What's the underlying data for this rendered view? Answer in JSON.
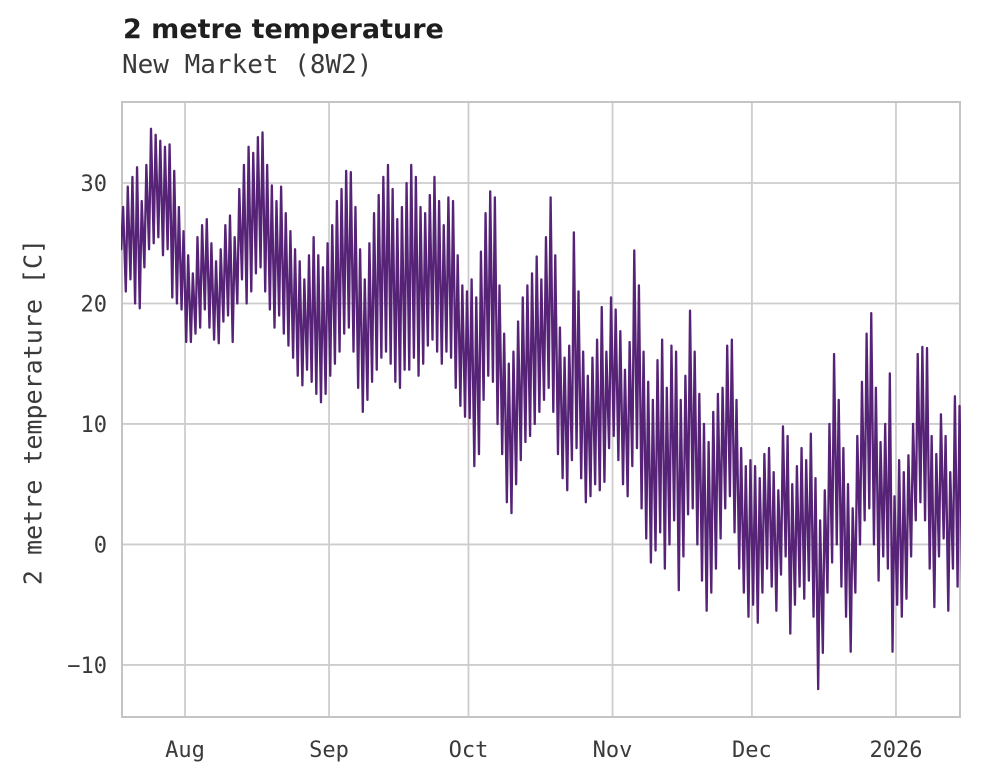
{
  "chart_data": {
    "type": "line",
    "title": "2 metre temperature",
    "subtitle": "New Market (8W2)",
    "ylabel": "2 metre temperature [C]",
    "series_name": "2 metre temperature",
    "line_color": "#562377",
    "grid_color": "#cdcdcd",
    "frame_color": "#c4c4c4",
    "title_color": "#1f1f1f",
    "text_color": "#3a3a3a",
    "grid": "on",
    "legend": "none",
    "ylim": [
      -14.32,
      36.72
    ],
    "x_range_days": [
      -13.56,
      166.78
    ],
    "y_ticks": [
      {
        "v": 30,
        "label": "30"
      },
      {
        "v": 20,
        "label": "20"
      },
      {
        "v": 10,
        "label": "10"
      },
      {
        "v": 0,
        "label": "0"
      },
      {
        "v": -10,
        "label": "−10"
      }
    ],
    "x_ticks": [
      {
        "label": "Aug",
        "day": 0
      },
      {
        "label": "Sep",
        "day": 31
      },
      {
        "label": "Oct",
        "day": 61
      },
      {
        "label": "Nov",
        "day": 92
      },
      {
        "label": "Dec",
        "day": 122
      },
      {
        "label": "2026",
        "day": 153
      }
    ],
    "first_day": -14,
    "daily_min": [
      24.5,
      21.0,
      22.0,
      20.0,
      19.6,
      23.0,
      24.5,
      25.0,
      25.5,
      24.0,
      24.5,
      20.5,
      20.0,
      19.5,
      16.8,
      16.8,
      17.5,
      18.0,
      19.5,
      18.0,
      17.0,
      16.7,
      18.5,
      19.0,
      16.8,
      20.0,
      22.0,
      20.0,
      21.0,
      22.5,
      23.0,
      21.0,
      19.5,
      18.0,
      19.0,
      17.5,
      16.5,
      15.5,
      14.0,
      13.2,
      14.5,
      13.5,
      12.5,
      11.8,
      12.5,
      14.0,
      15.0,
      16.0,
      17.5,
      18.0,
      16.0,
      13.0,
      11.0,
      12.0,
      13.5,
      14.5,
      15.5,
      16.0,
      15.0,
      13.5,
      13.0,
      14.5,
      14.5,
      15.5,
      14.0,
      15.0,
      16.5,
      17.0,
      16.0,
      15.0,
      16.0,
      15.5,
      13.0,
      11.5,
      10.6,
      10.5,
      6.5,
      7.5,
      12.0,
      14.0,
      13.5,
      10.0,
      7.5,
      3.5,
      2.6,
      5.0,
      7.0,
      8.5,
      9.0,
      10.0,
      11.0,
      12.0,
      13.0,
      11.0,
      7.5,
      5.5,
      4.5,
      7.0,
      8.0,
      5.5,
      3.5,
      4.0,
      5.0,
      4.5,
      5.2,
      8.0,
      9.0,
      7.0,
      5.0,
      4.0,
      6.5,
      8.0,
      3.0,
      0.5,
      -1.5,
      -0.5,
      1.0,
      -2.0,
      0.0,
      2.0,
      -3.8,
      -1.0,
      2.5,
      3.0,
      0.0,
      -3.0,
      -5.5,
      -4.0,
      -2.0,
      0.5,
      3.0,
      4.0,
      1.0,
      -2.0,
      -4.0,
      -6.0,
      -5.0,
      -6.5,
      -4.0,
      -2.0,
      -3.5,
      -5.5,
      -2.5,
      -1.0,
      -7.4,
      -5.0,
      -3.5,
      -4.5,
      -3.0,
      -6.0,
      -12.0,
      -9.0,
      -4.0,
      -1.5,
      0.0,
      -3.5,
      -6.0,
      -8.9,
      -4.0,
      0.0,
      2.0,
      3.0,
      0.0,
      -3.0,
      -1.0,
      -2.0,
      -8.9,
      -5.0,
      -6.0,
      -4.5,
      -1.0,
      2.0,
      3.5,
      2.0,
      -2.0,
      -5.2,
      -1.0,
      0.5,
      -5.5,
      -2.0,
      -3.5,
      -3.5
    ],
    "daily_max": [
      28.0,
      29.7,
      30.5,
      31.3,
      28.5,
      31.5,
      34.5,
      34.0,
      33.5,
      33.0,
      33.2,
      31.0,
      28.0,
      26.0,
      24.0,
      22.5,
      25.5,
      26.5,
      27.0,
      25.0,
      23.5,
      24.5,
      26.5,
      27.3,
      25.5,
      29.5,
      31.5,
      33.0,
      32.5,
      33.8,
      34.2,
      31.5,
      29.8,
      28.5,
      29.7,
      27.5,
      26.0,
      24.5,
      23.5,
      22.0,
      24.0,
      25.5,
      24.0,
      23.0,
      25.0,
      26.5,
      28.5,
      29.5,
      31.0,
      30.9,
      28.0,
      24.5,
      22.0,
      25.0,
      27.5,
      29.0,
      30.5,
      31.5,
      29.5,
      27.0,
      28.0,
      30.0,
      31.5,
      30.5,
      28.0,
      27.5,
      29.0,
      30.5,
      28.5,
      26.5,
      28.8,
      28.5,
      24.0,
      21.5,
      21.0,
      22.0,
      20.5,
      24.3,
      27.5,
      29.3,
      28.8,
      21.5,
      17.5,
      15.0,
      16.0,
      18.5,
      20.5,
      21.5,
      22.5,
      23.9,
      22.0,
      25.5,
      28.8,
      24.0,
      18.0,
      15.5,
      16.5,
      25.9,
      21.0,
      16.0,
      14.0,
      15.5,
      17.0,
      19.7,
      16.0,
      20.5,
      19.5,
      17.7,
      14.5,
      16.8,
      24.4,
      21.5,
      16.0,
      13.5,
      12.0,
      15.3,
      17.0,
      13.0,
      16.5,
      16.0,
      12.0,
      14.0,
      19.4,
      16.0,
      12.5,
      10.0,
      8.5,
      11.0,
      12.5,
      13.0,
      16.5,
      17.0,
      12.0,
      8.0,
      6.5,
      7.0,
      6.5,
      5.5,
      7.5,
      8.0,
      6.0,
      4.5,
      9.8,
      9.0,
      5.0,
      6.5,
      8.0,
      7.0,
      9.2,
      5.5,
      2.0,
      4.5,
      10.0,
      15.8,
      12.0,
      8.0,
      5.0,
      3.0,
      9.0,
      13.5,
      17.5,
      19.2,
      13.0,
      8.5,
      10.0,
      14.2,
      4.0,
      7.0,
      6.0,
      7.4,
      10.0,
      15.8,
      16.4,
      16.3,
      9.0,
      7.5,
      10.8,
      9.0,
      6.0,
      12.3,
      11.5,
      5.0
    ]
  }
}
